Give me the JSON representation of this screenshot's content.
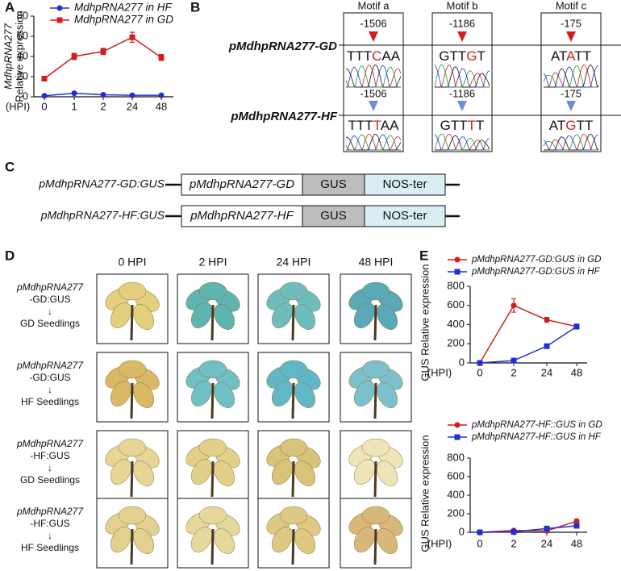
{
  "panel_labels": [
    "A",
    "B",
    "C",
    "D",
    "E"
  ],
  "chart_data": [
    {
      "type": "line",
      "xlabel": "(HPI)",
      "ylabel": [
        "MdhpRNA277",
        "Relative expression"
      ],
      "categories": [
        "0",
        "1",
        "2",
        "24",
        "48"
      ],
      "ylim": [
        0,
        80
      ],
      "yticks": [
        0,
        20,
        40,
        60,
        80
      ],
      "series": [
        {
          "name": "MdhpRNA277 in HF",
          "color": "#1f2fd6",
          "marker": "circle",
          "values": [
            1,
            3.5,
            2,
            1.5,
            1.5
          ],
          "errors": [
            0.5,
            1,
            0.5,
            0.5,
            0.5
          ]
        },
        {
          "name": "MdhpRNA277 in GD",
          "color": "#d11f1f",
          "marker": "square",
          "values": [
            18,
            40,
            45,
            59,
            39
          ],
          "errors": [
            2,
            3,
            3,
            5,
            3
          ]
        }
      ]
    },
    {
      "type": "line",
      "xlabel": "(HPI)",
      "ylabel": [
        "GUS Relative expression"
      ],
      "categories": [
        "0",
        "2",
        "24",
        "48"
      ],
      "ylim": [
        0,
        800
      ],
      "yticks": [
        0,
        200,
        400,
        600,
        800
      ],
      "series": [
        {
          "name": "pMdhpRNA277-GD:GUS in GD",
          "color": "#d11f1f",
          "marker": "circle",
          "values": [
            0,
            600,
            450,
            380
          ],
          "errors": [
            0,
            70,
            25,
            20
          ]
        },
        {
          "name": "pMdhpRNA277-GD:GUS in HF",
          "color": "#1f2fd6",
          "marker": "square",
          "values": [
            0,
            25,
            175,
            380
          ],
          "errors": [
            0,
            5,
            10,
            25
          ]
        }
      ]
    },
    {
      "type": "line",
      "xlabel": "(HPI)",
      "ylabel": [
        "GUS Relative expression"
      ],
      "categories": [
        "0",
        "2",
        "24",
        "48"
      ],
      "ylim": [
        0,
        800
      ],
      "yticks": [
        0,
        200,
        400,
        600,
        800
      ],
      "series": [
        {
          "name": "pMdhpRNA277-HF::GUS in GD",
          "color": "#d11f1f",
          "marker": "circle",
          "values": [
            0,
            20,
            15,
            120
          ],
          "errors": [
            0,
            5,
            5,
            20
          ]
        },
        {
          "name": "pMdhpRNA277-HF::GUS in HF",
          "color": "#1f2fd6",
          "marker": "square",
          "values": [
            0,
            5,
            40,
            70
          ],
          "errors": [
            0,
            2,
            5,
            5
          ]
        }
      ]
    }
  ],
  "motifs": {
    "rows": [
      "pMdhpRNA277-GD",
      "pMdhpRNA277-HF"
    ],
    "columns": [
      {
        "name": "Motif a",
        "gd": {
          "position": -1506,
          "seq": [
            "TTT",
            "C",
            "AA"
          ]
        },
        "hf": {
          "position": -1506,
          "seq": [
            "TTT",
            "T",
            "AA"
          ]
        }
      },
      {
        "name": "Motif b",
        "gd": {
          "position": -1186,
          "seq": [
            "GTT",
            "G",
            "T"
          ]
        },
        "hf": {
          "position": -1186,
          "seq": [
            "GTT",
            "T",
            "T"
          ]
        }
      },
      {
        "name": "Motif c",
        "gd": {
          "position": -175,
          "seq": [
            "AT",
            "A",
            "TT"
          ]
        },
        "hf": {
          "position": -175,
          "seq": [
            "AT",
            "G",
            "TT"
          ]
        }
      }
    ]
  },
  "constructs": [
    {
      "label": "pMdhpRNA277-GD:GUS",
      "parts": [
        "pMdhpRNA277-GD",
        "GUS",
        "NOS-ter"
      ]
    },
    {
      "label": "pMdhpRNA277-HF:GUS",
      "parts": [
        "pMdhpRNA277-HF",
        "GUS",
        "NOS-ter"
      ]
    }
  ],
  "staining": {
    "columns": [
      "0 HPI",
      "2 HPI",
      "24 HPI",
      "48 HPI"
    ],
    "rows": [
      [
        "pMdhpRNA277",
        "-GD:GUS",
        "↓",
        "GD Seedlings"
      ],
      [
        "pMdhpRNA277",
        "-GD:GUS",
        "↓",
        "HF Seedlings"
      ],
      [
        "pMdhpRNA277",
        "-HF:GUS",
        "↓",
        "GD Seedlings"
      ],
      [
        "pMdhpRNA277",
        "-HF:GUS",
        "↓",
        "HF Seedlings"
      ]
    ]
  }
}
